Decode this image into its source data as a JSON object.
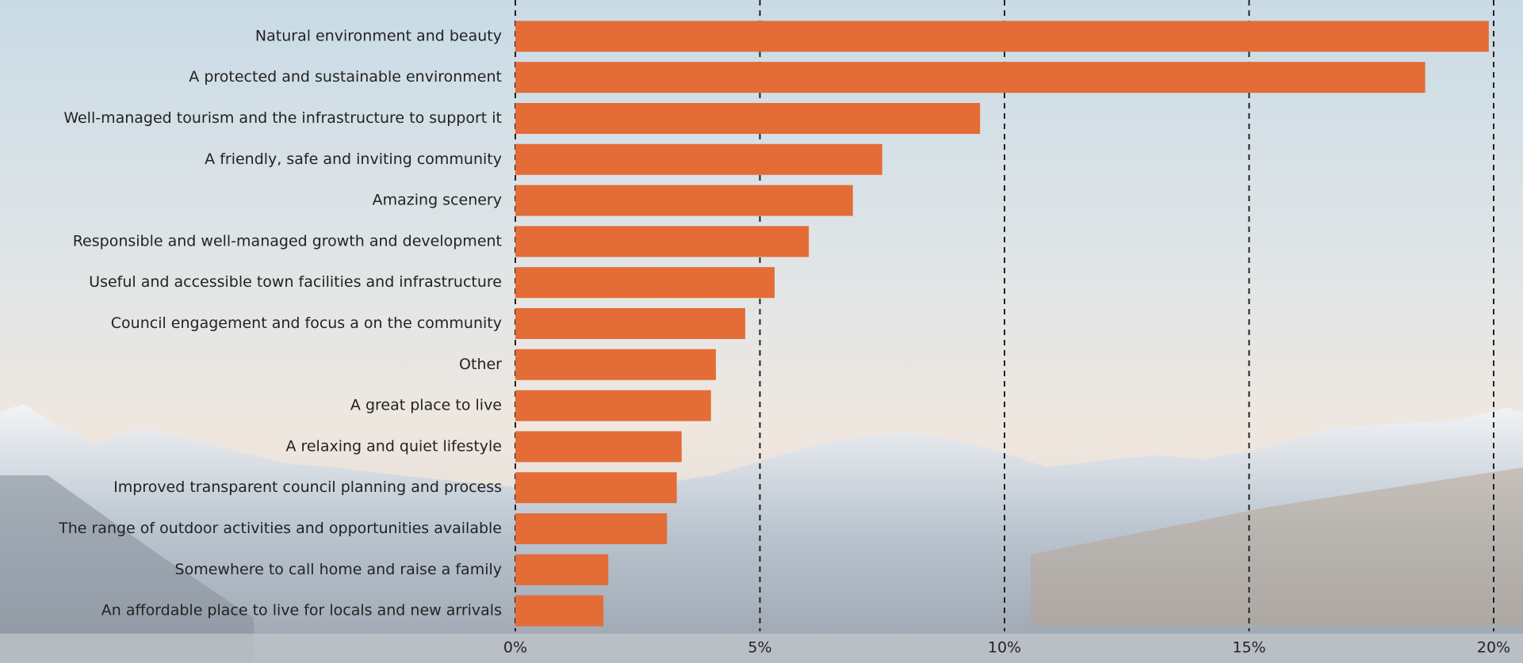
{
  "chart_data": {
    "type": "bar",
    "orientation": "horizontal",
    "color": "#e46c36",
    "grid": true,
    "categories": [
      "Natural environment and beauty",
      "A protected and sustainable environment",
      "Well-managed tourism and the infrastructure to support it",
      "A friendly, safe and inviting community",
      "Amazing scenery",
      "Responsible and well-managed growth and development",
      "Useful and accessible town facilities and infrastructure",
      "Council engagement and focus a on the community",
      "Other",
      "A great place to live",
      "A relaxing and quiet lifestyle",
      "Improved transparent council planning and process",
      "The range of outdoor activities and opportunities available",
      "Somewhere to call home and raise a family",
      "An affordable place to live for locals and new arrivals"
    ],
    "values": [
      19.9,
      18.6,
      9.5,
      7.5,
      6.9,
      6.0,
      5.3,
      4.7,
      4.1,
      4.0,
      3.4,
      3.3,
      3.1,
      1.9,
      1.8
    ],
    "xlim": [
      0,
      20
    ],
    "xticks": [
      {
        "value": 0,
        "label": "0%"
      },
      {
        "value": 5,
        "label": "5%"
      },
      {
        "value": 10,
        "label": "10%"
      },
      {
        "value": 15,
        "label": "15%"
      },
      {
        "value": 20,
        "label": "20%"
      }
    ]
  }
}
